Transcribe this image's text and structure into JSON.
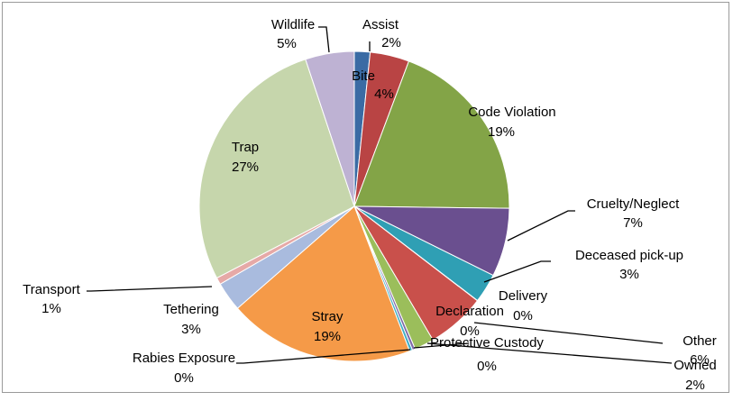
{
  "chart_data": {
    "type": "pie",
    "title": "",
    "legend": "none",
    "slices": [
      {
        "label": "Assist",
        "value": 1.6,
        "display": "2%",
        "color": "#3A6BA4"
      },
      {
        "label": "Bite",
        "value": 4.0,
        "display": "4%",
        "color": "#B94444"
      },
      {
        "label": "Code Violation",
        "value": 19.1,
        "display": "19%",
        "color": "#83A447"
      },
      {
        "label": "Cruelty/Neglect",
        "value": 7.0,
        "display": "7%",
        "color": "#6A4F8F"
      },
      {
        "label": "Deceased pick-up",
        "value": 3.0,
        "display": "3%",
        "color": "#2F9FB4"
      },
      {
        "label": "Delivery",
        "value": 0.01,
        "display": "0%",
        "color": "#E88B2E"
      },
      {
        "label": "Declaration",
        "value": 0.01,
        "display": "0%",
        "color": "#4F7FC0"
      },
      {
        "label": "Other",
        "value": 6.0,
        "display": "6%",
        "color": "#C9504B"
      },
      {
        "label": "Owned",
        "value": 2.0,
        "display": "2%",
        "color": "#9BBE5B"
      },
      {
        "label": "Protective Custody",
        "value": 0.3,
        "display": "0%",
        "color": "#7E6AA8"
      },
      {
        "label": "Rabies Exposure",
        "value": 0.3,
        "display": "0%",
        "color": "#3FAFC6"
      },
      {
        "label": "Stray",
        "value": 19.0,
        "display": "19%",
        "color": "#F59A48"
      },
      {
        "label": "Tethering",
        "value": 3.0,
        "display": "3%",
        "color": "#A9BBDE"
      },
      {
        "label": "Transport",
        "value": 0.7,
        "display": "1%",
        "color": "#E6A9A7"
      },
      {
        "label": "Trap",
        "value": 27.0,
        "display": "27%",
        "color": "#C6D6AC"
      },
      {
        "label": "Wildlife",
        "value": 5.0,
        "display": "5%",
        "color": "#BEB2D3"
      }
    ]
  }
}
